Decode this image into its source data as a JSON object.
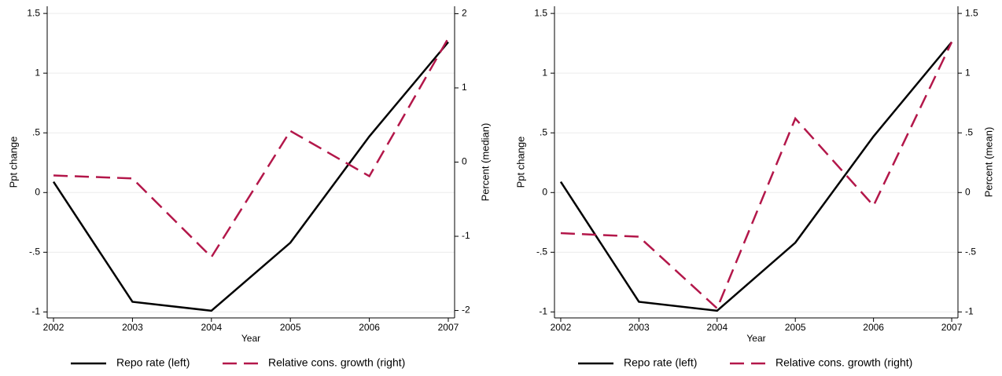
{
  "chart_data": [
    {
      "type": "line",
      "x_label": "Year",
      "y_label": "Ppt change",
      "y2_label": "Percent (median)",
      "x": [
        2002,
        2003,
        2004,
        2005,
        2006,
        2007
      ],
      "xlim": [
        2001.92,
        2007.08
      ],
      "xticks": [
        2002,
        2003,
        2004,
        2005,
        2006,
        2007
      ],
      "ylim": [
        -1.05,
        1.56
      ],
      "yticks": [
        {
          "value": -1,
          "label": "-1"
        },
        {
          "value": -0.5,
          "label": "-.5"
        },
        0,
        {
          "value": 0.5,
          "label": ".5"
        },
        1,
        1.5
      ],
      "y2lim": [
        -2.1,
        2.1
      ],
      "y2ticks": [
        -2,
        -1,
        0,
        1,
        2
      ],
      "grid": true,
      "legend": "bottom",
      "series": [
        {
          "name": "Repo rate (left)",
          "color": "#000000",
          "dash": "solid",
          "values": [
            0.09,
            -0.915,
            -0.99,
            -0.42,
            0.47,
            1.26
          ]
        },
        {
          "name": "Relative cons. growth (right)",
          "color": "#b3174a",
          "dash": "dashed",
          "axis": "y2",
          "values": [
            -0.18,
            -0.22,
            -1.28,
            0.42,
            -0.19,
            1.67
          ]
        }
      ]
    },
    {
      "type": "line",
      "x_label": "Year",
      "y_label": "Ppt change",
      "y2_label": "Percent (mean)",
      "x": [
        2002,
        2003,
        2004,
        2005,
        2006,
        2007
      ],
      "xlim": [
        2001.92,
        2007.08
      ],
      "xticks": [
        2002,
        2003,
        2004,
        2005,
        2006,
        2007
      ],
      "ylim": [
        -1.05,
        1.56
      ],
      "yticks": [
        {
          "value": -1,
          "label": "-1"
        },
        {
          "value": -0.5,
          "label": "-.5"
        },
        0,
        {
          "value": 0.5,
          "label": ".5"
        },
        1,
        1.5
      ],
      "y2lim": [
        -1.05,
        1.56
      ],
      "y2ticks": [
        {
          "value": -1,
          "label": "-1"
        },
        {
          "value": -0.5,
          "label": "-.5"
        },
        0,
        {
          "value": 0.5,
          "label": ".5"
        },
        1,
        1.5
      ],
      "grid": true,
      "legend": "bottom",
      "series": [
        {
          "name": "Repo rate (left)",
          "color": "#000000",
          "dash": "solid",
          "values": [
            0.09,
            -0.915,
            -0.99,
            -0.42,
            0.47,
            1.26
          ]
        },
        {
          "name": "Relative cons. growth (right)",
          "color": "#b3174a",
          "dash": "dashed",
          "axis": "y2",
          "values": [
            -0.34,
            -0.37,
            -0.97,
            0.62,
            -0.11,
            1.26
          ]
        }
      ]
    }
  ]
}
